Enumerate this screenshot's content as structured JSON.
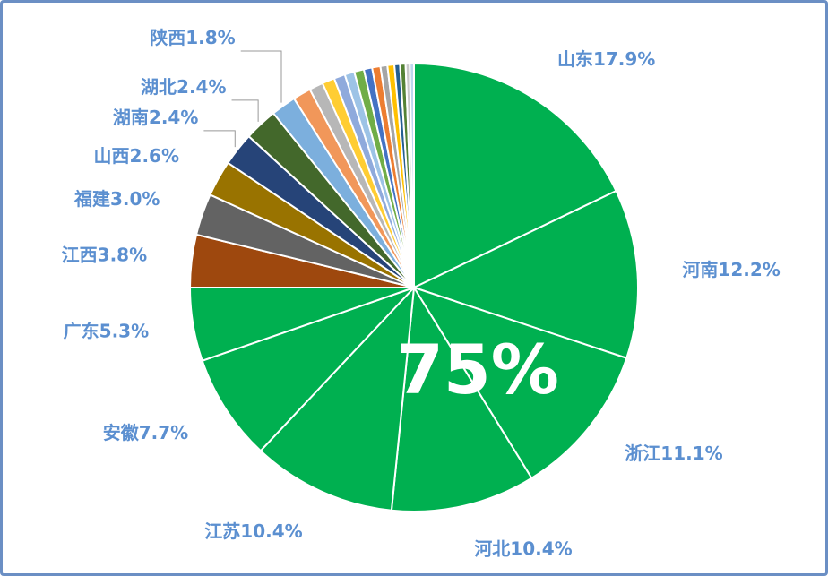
{
  "chart_data": {
    "type": "pie",
    "annotation": "75%",
    "categories": [
      "山东",
      "河南",
      "浙江",
      "河北",
      "江苏",
      "安徽",
      "广东",
      "江西",
      "福建",
      "山西",
      "湖南",
      "湖北",
      "陕西",
      null,
      null,
      null,
      null,
      null,
      null,
      null,
      null,
      null,
      null,
      null,
      null,
      null,
      null
    ],
    "values": [
      17.9,
      12.2,
      11.1,
      10.4,
      10.4,
      7.7,
      5.3,
      3.8,
      3.0,
      2.6,
      2.4,
      2.4,
      1.8,
      1.3,
      1.0,
      0.9,
      0.8,
      0.7,
      0.7,
      0.6,
      0.6,
      0.5,
      0.5,
      0.4,
      0.4,
      0.3,
      0.3
    ],
    "value_labels": [
      "17.9%",
      "12.2%",
      "11.1%",
      "10.4%",
      "10.4%",
      "7.7%",
      "5.3%",
      "3.8%",
      "3.0%",
      "2.6%",
      "2.4%",
      "2.4%",
      "1.8%",
      null,
      null,
      null,
      null,
      null,
      null,
      null,
      null,
      null,
      null,
      null,
      null,
      null,
      null
    ],
    "colors": [
      "#00b050",
      "#00b050",
      "#00b050",
      "#00b050",
      "#00b050",
      "#00b050",
      "#00b050",
      "#9e480e",
      "#636363",
      "#997300",
      "#264478",
      "#43682b",
      "#7cafdd",
      "#f1975a",
      "#b7b7b7",
      "#ffcd33",
      "#8faadc",
      "#9dc3e6",
      "#70ad47",
      "#4472c4",
      "#ed7d31",
      "#a5a5a5",
      "#ffc000",
      "#255e91",
      "#548235",
      "#c9c9c9",
      "#bdd7ee"
    ]
  }
}
